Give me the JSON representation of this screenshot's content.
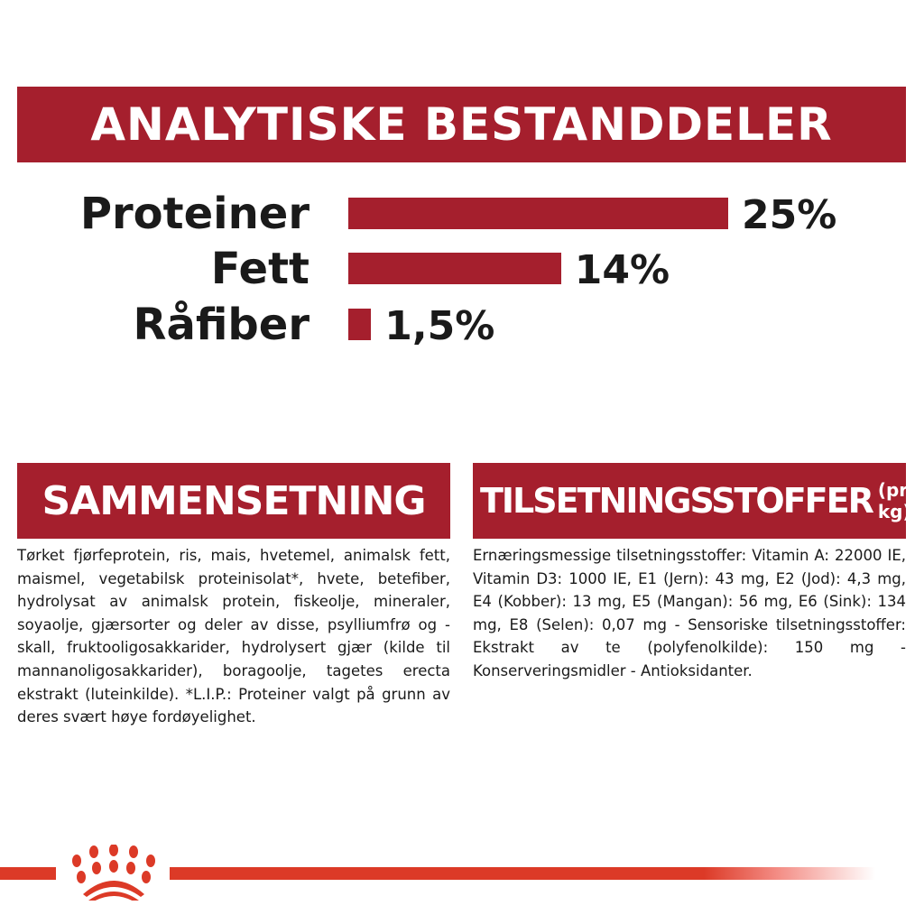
{
  "header": {
    "title": "ANALYTISKE BESTANDDELER"
  },
  "chart_data": {
    "type": "bar",
    "orientation": "horizontal",
    "categories": [
      "Proteiner",
      "Fett",
      "Råfiber"
    ],
    "values": [
      25,
      14,
      1.5
    ],
    "value_labels": [
      "25%",
      "14%",
      "1,5%"
    ],
    "unit": "%",
    "bar_color": "#a51f2d"
  },
  "composition": {
    "title": "SAMMENSETNING",
    "text": "Tørket fjørfeprotein, ris, mais, hvetemel, animalsk fett, maismel, vegetabilsk proteinisolat*, hvete, betefiber, hydrolysat av animalsk protein, fiskeolje, mineraler, soyaolje, gjærsorter og deler av disse, psylliumfrø og -skall, fruktooligosakkarider, hydrolysert gjær (kilde til mannanoligosakkarider), boragoolje, tagetes erecta ekstrakt (luteinkilde). *L.I.P.: Proteiner valgt på grunn av deres svært høye fordøyelighet."
  },
  "additives": {
    "title": "TILSETNINGSSTOFFER",
    "title_suffix": "(pr. kg)",
    "text": "Ernæringsmessige tilsetningsstoffer: Vitamin A: 22000 IE, Vitamin D3: 1000 IE, E1 (Jern): 43 mg, E2 (Jod): 4,3 mg, E4 (Kobber): 13 mg, E5 (Mangan): 56 mg, E6 (Sink): 134 mg, E8 (Selen): 0,07 mg - Sensoriske tilsetningsstoffer: Ekstrakt av te (polyfenolkilde): 150 mg - Konserveringsmidler - Antioksidanter."
  },
  "footer": {
    "logo": "royal-canin-crown-logo",
    "accent": "#dc3a27"
  }
}
